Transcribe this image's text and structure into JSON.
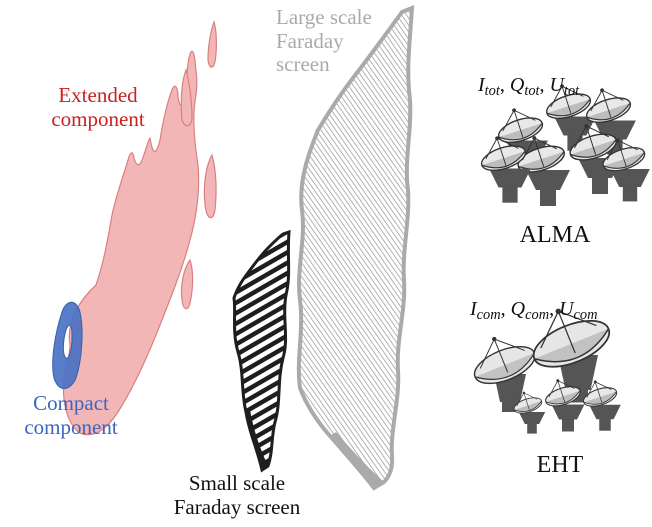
{
  "labels": {
    "extended_line1": "Extended",
    "extended_line2": "component",
    "compact_line1": "Compact",
    "compact_line2": "component",
    "large_line1": "Large scale",
    "large_line2": "Faraday",
    "large_line3": "screen",
    "small_line1": "Small scale",
    "small_line2": "Faraday screen",
    "alma": "ALMA",
    "eht": "EHT"
  },
  "alma_stokes": {
    "i": "I",
    "q": "Q",
    "u": "U",
    "sub": "tot",
    "sep": ","
  },
  "eht_stokes": {
    "i": "I",
    "q": "Q",
    "u": "U",
    "sub": "com",
    "sep": ","
  },
  "colors": {
    "extended_fill": "#f3b6b6",
    "extended_stroke": "#d98080",
    "extended_text": "#cc1f1f",
    "compact_fill": "#4a72c4",
    "compact_text": "#3a66c0",
    "large_screen": "#aaaaaa",
    "small_screen": "#1e1e1e",
    "antenna": "#555555"
  },
  "icons": {
    "alma_array": "radio-telescope-array-icon",
    "eht_array": "radio-telescope-array-icon"
  }
}
